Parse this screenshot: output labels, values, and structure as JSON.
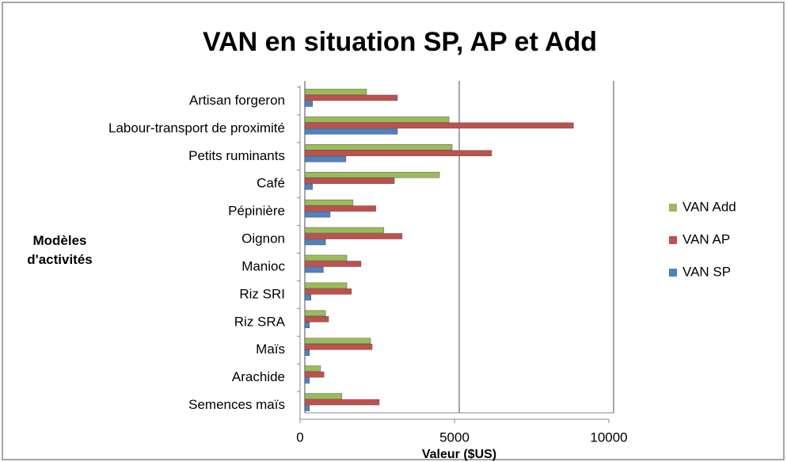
{
  "chart_data": {
    "type": "hbar",
    "title": "VAN en situation SP, AP et Add",
    "xlabel": "Valeur ($US)",
    "ylabel": "Modèles d'activités",
    "categories": [
      "Artisan forgeron",
      "Labour-transport de proximité",
      "Petits ruminants",
      "Café",
      "Pépinière",
      "Oignon",
      "Manioc",
      "Riz SRI",
      "Riz SRA",
      "Maïs",
      "Arachide",
      "Semences maïs"
    ],
    "series": [
      {
        "name": "VAN Add",
        "color": "#9bbb59",
        "values": [
          2000,
          4670,
          4770,
          4360,
          1560,
          2560,
          1360,
          1360,
          670,
          2130,
          510,
          1200
        ]
      },
      {
        "name": "VAN AP",
        "color": "#c0504d",
        "values": [
          3000,
          8700,
          6050,
          2900,
          2300,
          3150,
          1820,
          1510,
          770,
          2180,
          620,
          2410
        ]
      },
      {
        "name": "VAN SP",
        "color": "#4f81bd",
        "values": [
          250,
          3000,
          1330,
          250,
          820,
          670,
          600,
          200,
          150,
          150,
          150,
          150
        ]
      }
    ],
    "xlim": [
      0,
      10000
    ],
    "xticks": [
      0,
      5000,
      10000
    ],
    "grid": true,
    "legend": "right"
  }
}
